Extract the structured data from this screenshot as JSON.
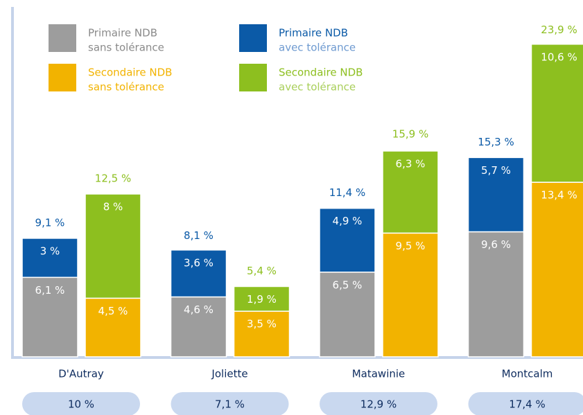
{
  "chart_data": {
    "type": "stacked-bar",
    "categories": [
      "D'Autray",
      "Joliette",
      "Matawinie",
      "Montcalm"
    ],
    "ylim": [
      0,
      25
    ],
    "series": [
      {
        "name": "Primaire NDB",
        "subname": "sans tolérance",
        "stack": "primaire",
        "color": "#9d9d9d",
        "values": [
          6.1,
          4.6,
          6.5,
          9.6
        ],
        "value_labels": [
          "6,1 %",
          "4,6 %",
          "6,5 %",
          "9,6 %"
        ]
      },
      {
        "name": "Primaire NDB",
        "subname": "avec tolérance",
        "stack": "primaire",
        "color": "#0b5aa7",
        "values": [
          3,
          3.6,
          4.9,
          5.7
        ],
        "value_labels": [
          "3 %",
          "3,6 %",
          "4,9 %",
          "5,7 %"
        ]
      },
      {
        "name": "Secondaire NDB",
        "subname": "sans tolérance",
        "stack": "secondaire",
        "color": "#f2b300",
        "values": [
          4.5,
          3.5,
          9.5,
          13.4
        ],
        "value_labels": [
          "4,5 %",
          "3,5 %",
          "9,5 %",
          "13,4 %"
        ]
      },
      {
        "name": "Secondaire NDB",
        "subname": "avec tolérance",
        "stack": "secondaire",
        "color": "#8dbf1f",
        "values": [
          8,
          1.9,
          6.3,
          10.6
        ],
        "value_labels": [
          "8 %",
          "1,9 %",
          "6,3 %",
          "10,6 %"
        ]
      }
    ],
    "stack_totals": {
      "primaire": {
        "color": "#0b5aa7",
        "values": [
          9.1,
          8.1,
          11.4,
          15.3
        ],
        "value_labels": [
          "9,1 %",
          "8,1 %",
          "11,4 %",
          "15,3 %"
        ]
      },
      "secondaire": {
        "color": "#8dbf1f",
        "values": [
          12.5,
          5.4,
          15.9,
          23.9
        ],
        "value_labels": [
          "12,5 %",
          "5,4 %",
          "15,9 %",
          "23,9 %"
        ]
      }
    },
    "overall": {
      "values": [
        10,
        7.1,
        12.9,
        17.4
      ],
      "value_labels": [
        "10 %",
        "7,1 %",
        "12,9 %",
        "17,4 %"
      ]
    }
  }
}
